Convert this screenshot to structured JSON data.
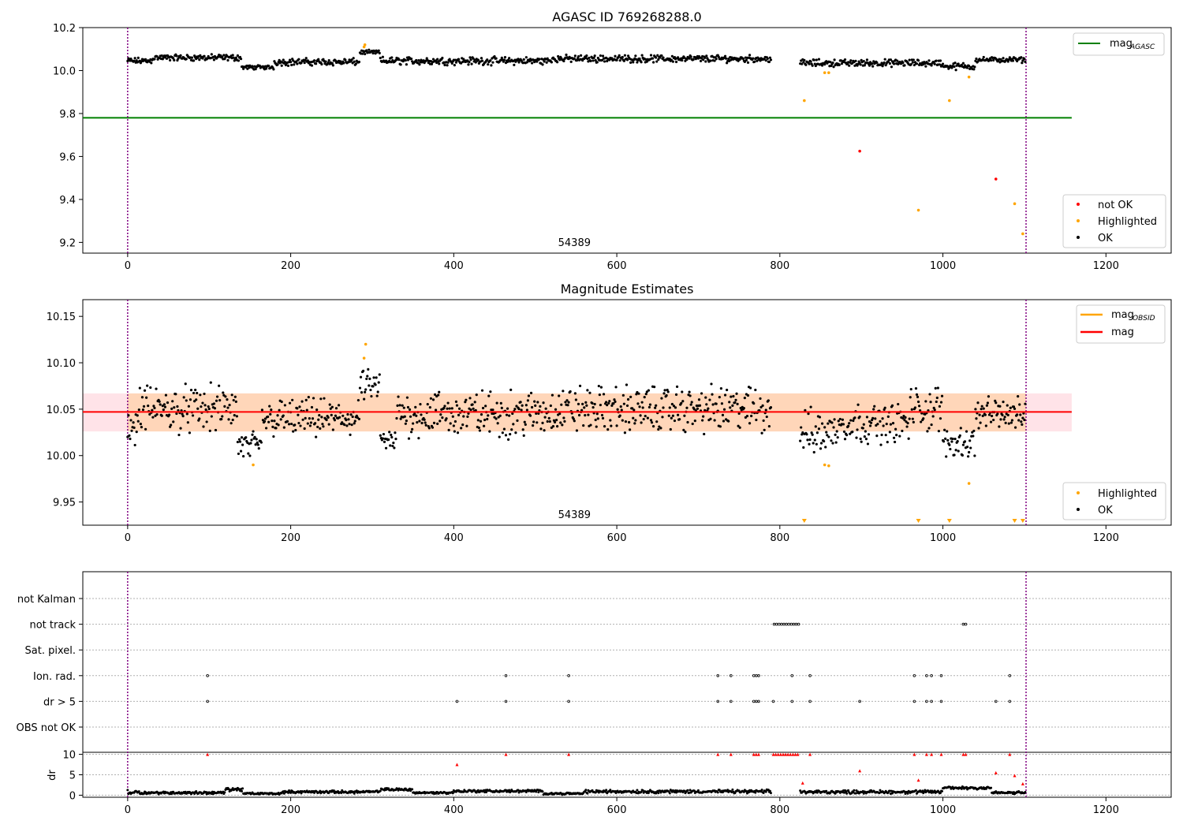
{
  "figure": {
    "title": "AGASC ID 769268288.0"
  },
  "chart_data": [
    {
      "type": "scatter",
      "title": "AGASC ID 769268288.0",
      "xlim": [
        -55,
        1280
      ],
      "ylim": [
        9.15,
        10.2
      ],
      "xticks": [
        "0",
        "200",
        "400",
        "600",
        "800",
        "1000",
        "1200"
      ],
      "xtick_values": [
        0,
        200,
        400,
        600,
        800,
        1000,
        1200
      ],
      "yticks": [
        "9.2",
        "9.4",
        "9.6",
        "9.8",
        "10.0",
        "10.2"
      ],
      "ytick_values": [
        9.2,
        9.4,
        9.6,
        9.8,
        10.0,
        10.2
      ],
      "obsid_label": "54389",
      "vlines": [
        0,
        1102
      ],
      "mag_agasc": {
        "y": 9.78,
        "x": [
          -55,
          1158
        ],
        "color": "#008000"
      },
      "legend_top": [
        {
          "label": "mag",
          "sub": "AGASC",
          "color": "#008000"
        }
      ],
      "legend_bottom": [
        {
          "label": "not OK",
          "color": "#ff0000"
        },
        {
          "label": "Highlighted",
          "color": "#ffa500"
        },
        {
          "label": "OK",
          "color": "#000000"
        }
      ],
      "ok_segments": [
        {
          "x": [
            0,
            30
          ],
          "base": 10.045,
          "amp": 0.018
        },
        {
          "x": [
            30,
            140
          ],
          "base": 10.06,
          "amp": 0.018
        },
        {
          "x": [
            140,
            180
          ],
          "base": 10.015,
          "amp": 0.012
        },
        {
          "x": [
            180,
            285
          ],
          "base": 10.04,
          "amp": 0.02
        },
        {
          "x": [
            285,
            310
          ],
          "base": 10.085,
          "amp": 0.012
        },
        {
          "x": [
            310,
            520
          ],
          "base": 10.045,
          "amp": 0.022
        },
        {
          "x": [
            520,
            790
          ],
          "base": 10.055,
          "amp": 0.02
        },
        {
          "x": [
            825,
            1000
          ],
          "base": 10.035,
          "amp": 0.02
        },
        {
          "x": [
            1000,
            1040
          ],
          "base": 10.02,
          "amp": 0.02
        },
        {
          "x": [
            1040,
            1102
          ],
          "base": 10.05,
          "amp": 0.015
        }
      ],
      "highlighted": [
        [
          290,
          10.11
        ],
        [
          291,
          10.12
        ],
        [
          830,
          9.86
        ],
        [
          855,
          9.99
        ],
        [
          860,
          9.99
        ],
        [
          970,
          9.35
        ],
        [
          1008,
          9.86
        ],
        [
          1032,
          9.97
        ],
        [
          1088,
          9.38
        ],
        [
          1098,
          9.24
        ]
      ],
      "not_ok": [
        [
          898,
          9.625
        ],
        [
          1065,
          9.495
        ]
      ]
    },
    {
      "type": "scatter",
      "title": "Magnitude Estimates",
      "xlim": [
        -55,
        1280
      ],
      "ylim": [
        9.925,
        10.168
      ],
      "xticks": [
        "0",
        "200",
        "400",
        "600",
        "800",
        "1000",
        "1200"
      ],
      "xtick_values": [
        0,
        200,
        400,
        600,
        800,
        1000,
        1200
      ],
      "yticks": [
        "9.95",
        "10.00",
        "10.05",
        "10.10",
        "10.15"
      ],
      "ytick_values": [
        9.95,
        10.0,
        10.05,
        10.1,
        10.15
      ],
      "obsid_label": "54389",
      "vlines": [
        0,
        1102
      ],
      "mag_line": {
        "y": 10.047,
        "x": [
          -55,
          1158
        ],
        "color": "#ff0000"
      },
      "mag_band": {
        "y": [
          10.026,
          10.067
        ],
        "x": [
          -55,
          1158
        ],
        "color": "#ffc0cb"
      },
      "mag_obsid_band": {
        "y": [
          10.026,
          10.067
        ],
        "x": [
          0,
          1102
        ],
        "color": "#ffa500"
      },
      "legend_top": [
        {
          "label": "mag",
          "sub": "OBSID",
          "color": "#ffa500"
        },
        {
          "label": "mag",
          "sub": "",
          "color": "#ff0000"
        }
      ],
      "legend_bottom": [
        {
          "label": "Highlighted",
          "color": "#ffa500"
        },
        {
          "label": "OK",
          "color": "#000000"
        }
      ],
      "ok_segments": [
        {
          "x": [
            0,
            12
          ],
          "base": 10.03,
          "amp": 0.02
        },
        {
          "x": [
            12,
            135
          ],
          "base": 10.05,
          "amp": 0.03
        },
        {
          "x": [
            135,
            165
          ],
          "base": 10.01,
          "amp": 0.02
        },
        {
          "x": [
            165,
            285
          ],
          "base": 10.04,
          "amp": 0.025
        },
        {
          "x": [
            285,
            310
          ],
          "base": 10.075,
          "amp": 0.02
        },
        {
          "x": [
            310,
            330
          ],
          "base": 10.015,
          "amp": 0.015
        },
        {
          "x": [
            330,
            520
          ],
          "base": 10.045,
          "amp": 0.03
        },
        {
          "x": [
            520,
            790
          ],
          "base": 10.05,
          "amp": 0.03
        },
        {
          "x": [
            825,
            870
          ],
          "base": 10.025,
          "amp": 0.03
        },
        {
          "x": [
            870,
            960
          ],
          "base": 10.035,
          "amp": 0.025
        },
        {
          "x": [
            960,
            1000
          ],
          "base": 10.05,
          "amp": 0.03
        },
        {
          "x": [
            1000,
            1040
          ],
          "base": 10.015,
          "amp": 0.02
        },
        {
          "x": [
            1040,
            1102
          ],
          "base": 10.045,
          "amp": 0.02
        }
      ],
      "highlighted": [
        [
          154,
          9.99
        ],
        [
          290,
          10.105
        ],
        [
          292,
          10.12
        ],
        [
          855,
          9.99
        ],
        [
          860,
          9.989
        ],
        [
          1032,
          9.97
        ]
      ],
      "highlighted_offscale_x": [
        830,
        970,
        1008,
        1088,
        1098
      ]
    },
    {
      "type": "scatter",
      "title": "",
      "xlim": [
        -55,
        1280
      ],
      "xticks": [
        "0",
        "200",
        "400",
        "600",
        "800",
        "1000",
        "1200"
      ],
      "xtick_values": [
        0,
        200,
        400,
        600,
        800,
        1000,
        1200
      ],
      "vlines": [
        0,
        1102
      ],
      "flag_rows": [
        "not Kalman",
        "not track",
        "Sat. pixel.",
        "Ion. rad.",
        "dr > 5",
        "OBS not OK"
      ],
      "flag_points": {
        "not track": [
          793,
          796,
          799,
          802,
          805,
          808,
          811,
          814,
          817,
          820,
          823,
          1025,
          1028
        ],
        "Ion. rad.": [
          98,
          464,
          541,
          724,
          740,
          768,
          771,
          774,
          815,
          837,
          965,
          980,
          986,
          998,
          1082
        ],
        "dr > 5": [
          98,
          404,
          464,
          541,
          724,
          740,
          768,
          771,
          774,
          792,
          815,
          837,
          898,
          965,
          980,
          986,
          998,
          1065,
          1082
        ]
      },
      "dr_axis": {
        "ylabel": "dr",
        "ylim": [
          -0.5,
          10.5
        ],
        "yticks": [
          "0",
          "5",
          "10"
        ],
        "ytick_values": [
          0,
          5,
          10
        ]
      },
      "dr_ok_segments": [
        {
          "x": [
            0,
            15
          ],
          "base": 0.8,
          "amp": 0.9
        },
        {
          "x": [
            15,
            120
          ],
          "base": 0.6,
          "amp": 0.4
        },
        {
          "x": [
            120,
            142
          ],
          "base": 1.4,
          "amp": 0.5
        },
        {
          "x": [
            142,
            190
          ],
          "base": 0.4,
          "amp": 0.3
        },
        {
          "x": [
            190,
            310
          ],
          "base": 0.8,
          "amp": 0.4
        },
        {
          "x": [
            310,
            350
          ],
          "base": 1.4,
          "amp": 0.4
        },
        {
          "x": [
            350,
            400
          ],
          "base": 0.6,
          "amp": 0.3
        },
        {
          "x": [
            400,
            510
          ],
          "base": 1.0,
          "amp": 0.4
        },
        {
          "x": [
            510,
            560
          ],
          "base": 0.4,
          "amp": 0.3
        },
        {
          "x": [
            560,
            790
          ],
          "base": 0.9,
          "amp": 0.5
        },
        {
          "x": [
            825,
            1000
          ],
          "base": 0.8,
          "amp": 0.5
        },
        {
          "x": [
            1000,
            1060
          ],
          "base": 1.8,
          "amp": 0.5
        },
        {
          "x": [
            1060,
            1102
          ],
          "base": 0.6,
          "amp": 0.4
        }
      ],
      "dr_not_ok": [
        [
          98,
          10
        ],
        [
          404,
          7.5
        ],
        [
          464,
          10
        ],
        [
          541,
          10
        ],
        [
          724,
          10
        ],
        [
          740,
          10
        ],
        [
          768,
          10
        ],
        [
          771,
          10
        ],
        [
          774,
          10
        ],
        [
          792,
          10
        ],
        [
          795,
          10
        ],
        [
          798,
          10
        ],
        [
          801,
          10
        ],
        [
          804,
          10
        ],
        [
          807,
          10
        ],
        [
          810,
          10
        ],
        [
          813,
          10
        ],
        [
          816,
          10
        ],
        [
          819,
          10
        ],
        [
          822,
          10
        ],
        [
          837,
          10
        ],
        [
          828,
          3.0
        ],
        [
          898,
          6.0
        ],
        [
          965,
          10
        ],
        [
          970,
          3.7
        ],
        [
          980,
          10
        ],
        [
          986,
          10
        ],
        [
          998,
          10
        ],
        [
          1025,
          10
        ],
        [
          1028,
          10
        ],
        [
          1065,
          5.5
        ],
        [
          1082,
          10
        ],
        [
          1088,
          4.8
        ],
        [
          1098,
          2.8
        ]
      ]
    }
  ]
}
